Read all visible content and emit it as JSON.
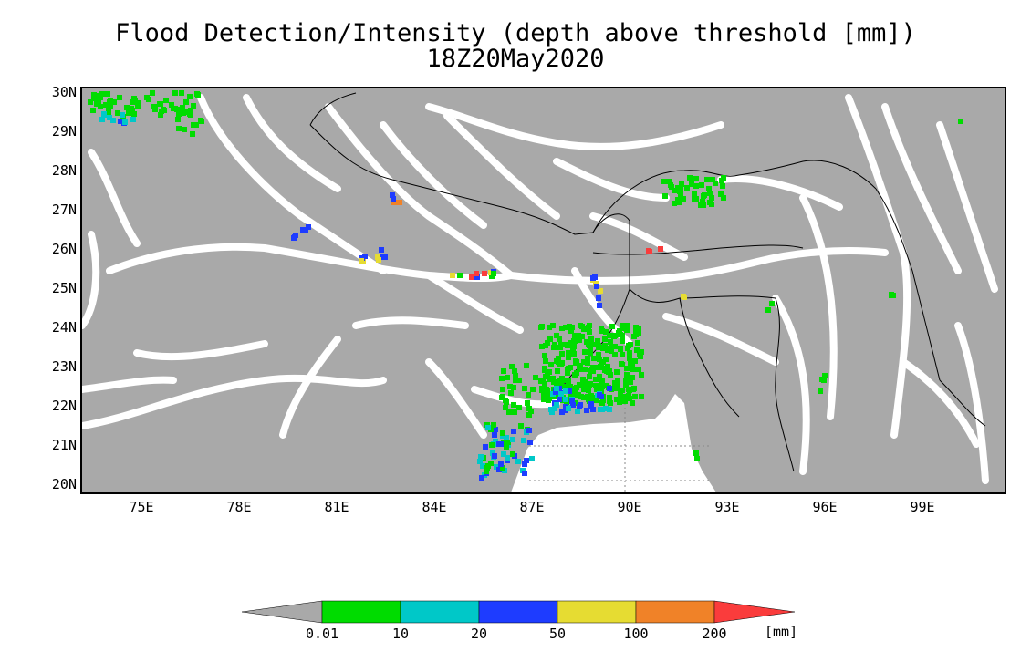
{
  "title": "Flood Detection/Intensity (depth above threshold [mm])",
  "subtitle": "18Z20May2020",
  "map": {
    "background_color": "#a9a9a9",
    "water_color": "#ffffff",
    "border_color": "#000000",
    "lat_range": [
      19.8,
      30.1
    ],
    "lon_range": [
      73.0,
      102.0
    ],
    "lat_labels": [
      "30N",
      "29N",
      "28N",
      "27N",
      "26N",
      "25N",
      "24N",
      "23N",
      "22N",
      "21N",
      "20N"
    ],
    "lat_values": [
      30,
      29,
      28,
      27,
      26,
      25,
      24,
      23,
      22,
      21,
      20
    ],
    "lon_labels": [
      "75E",
      "78E",
      "81E",
      "84E",
      "87E",
      "90E",
      "93E",
      "96E",
      "99E"
    ],
    "lon_values": [
      75,
      78,
      81,
      84,
      87,
      90,
      93,
      96,
      99
    ]
  },
  "legend": {
    "unit": "[mm]",
    "labels": [
      "0.01",
      "10",
      "20",
      "50",
      "100",
      "200"
    ],
    "colors": [
      "#a9a9a9",
      "#00dc00",
      "#00c8c8",
      "#1e3cff",
      "#e6dc32",
      "#f08228",
      "#fa3c3c"
    ]
  }
}
